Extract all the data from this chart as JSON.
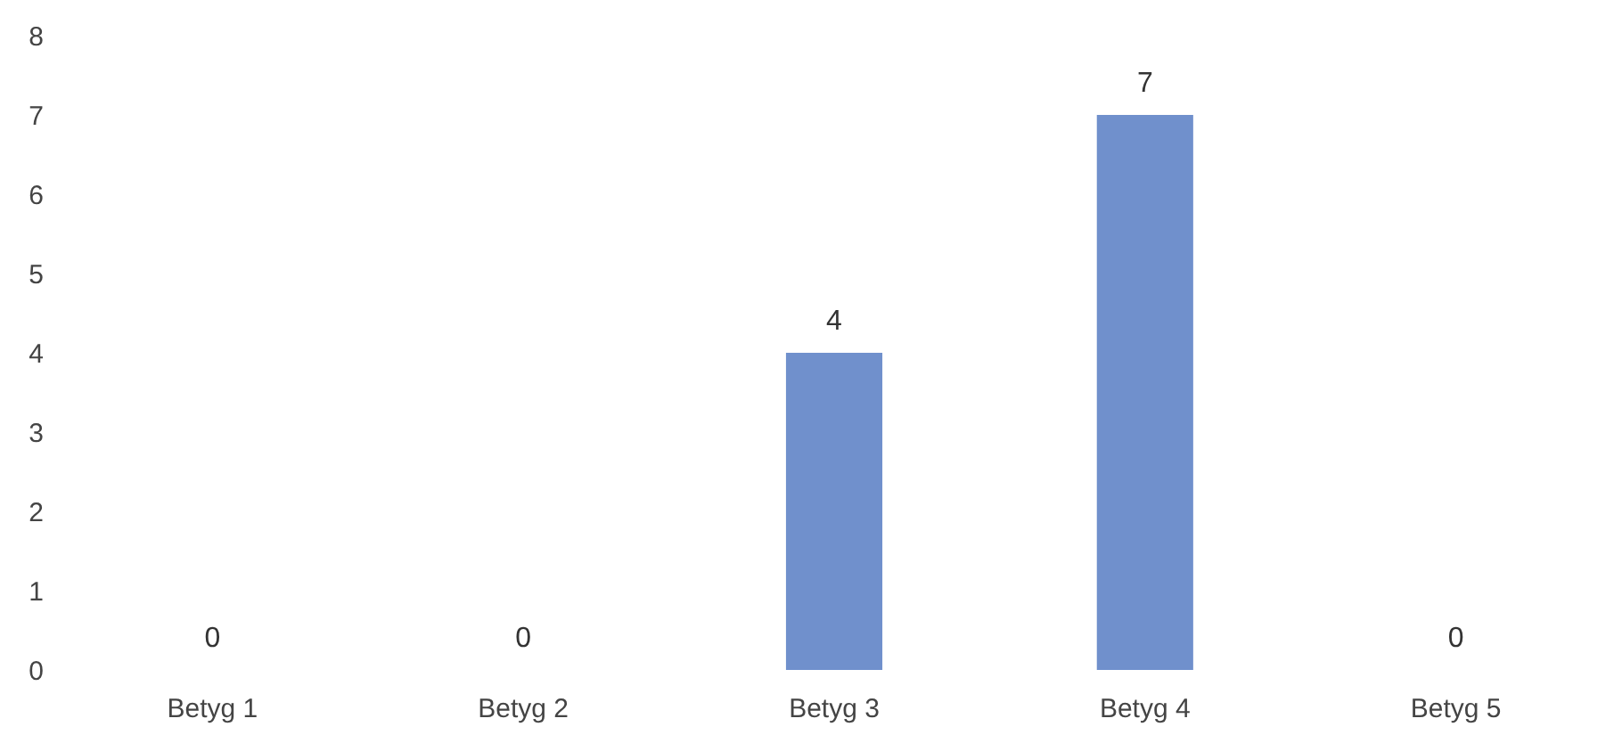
{
  "chart_data": {
    "type": "bar",
    "categories": [
      "Betyg 1",
      "Betyg 2",
      "Betyg 3",
      "Betyg 4",
      "Betyg 5"
    ],
    "values": [
      0,
      0,
      4,
      7,
      0
    ],
    "color": "#7090cc",
    "ylim": [
      0,
      8
    ],
    "yticks": [
      0,
      1,
      2,
      3,
      4,
      5,
      6,
      7,
      8
    ],
    "data_labels": true
  }
}
